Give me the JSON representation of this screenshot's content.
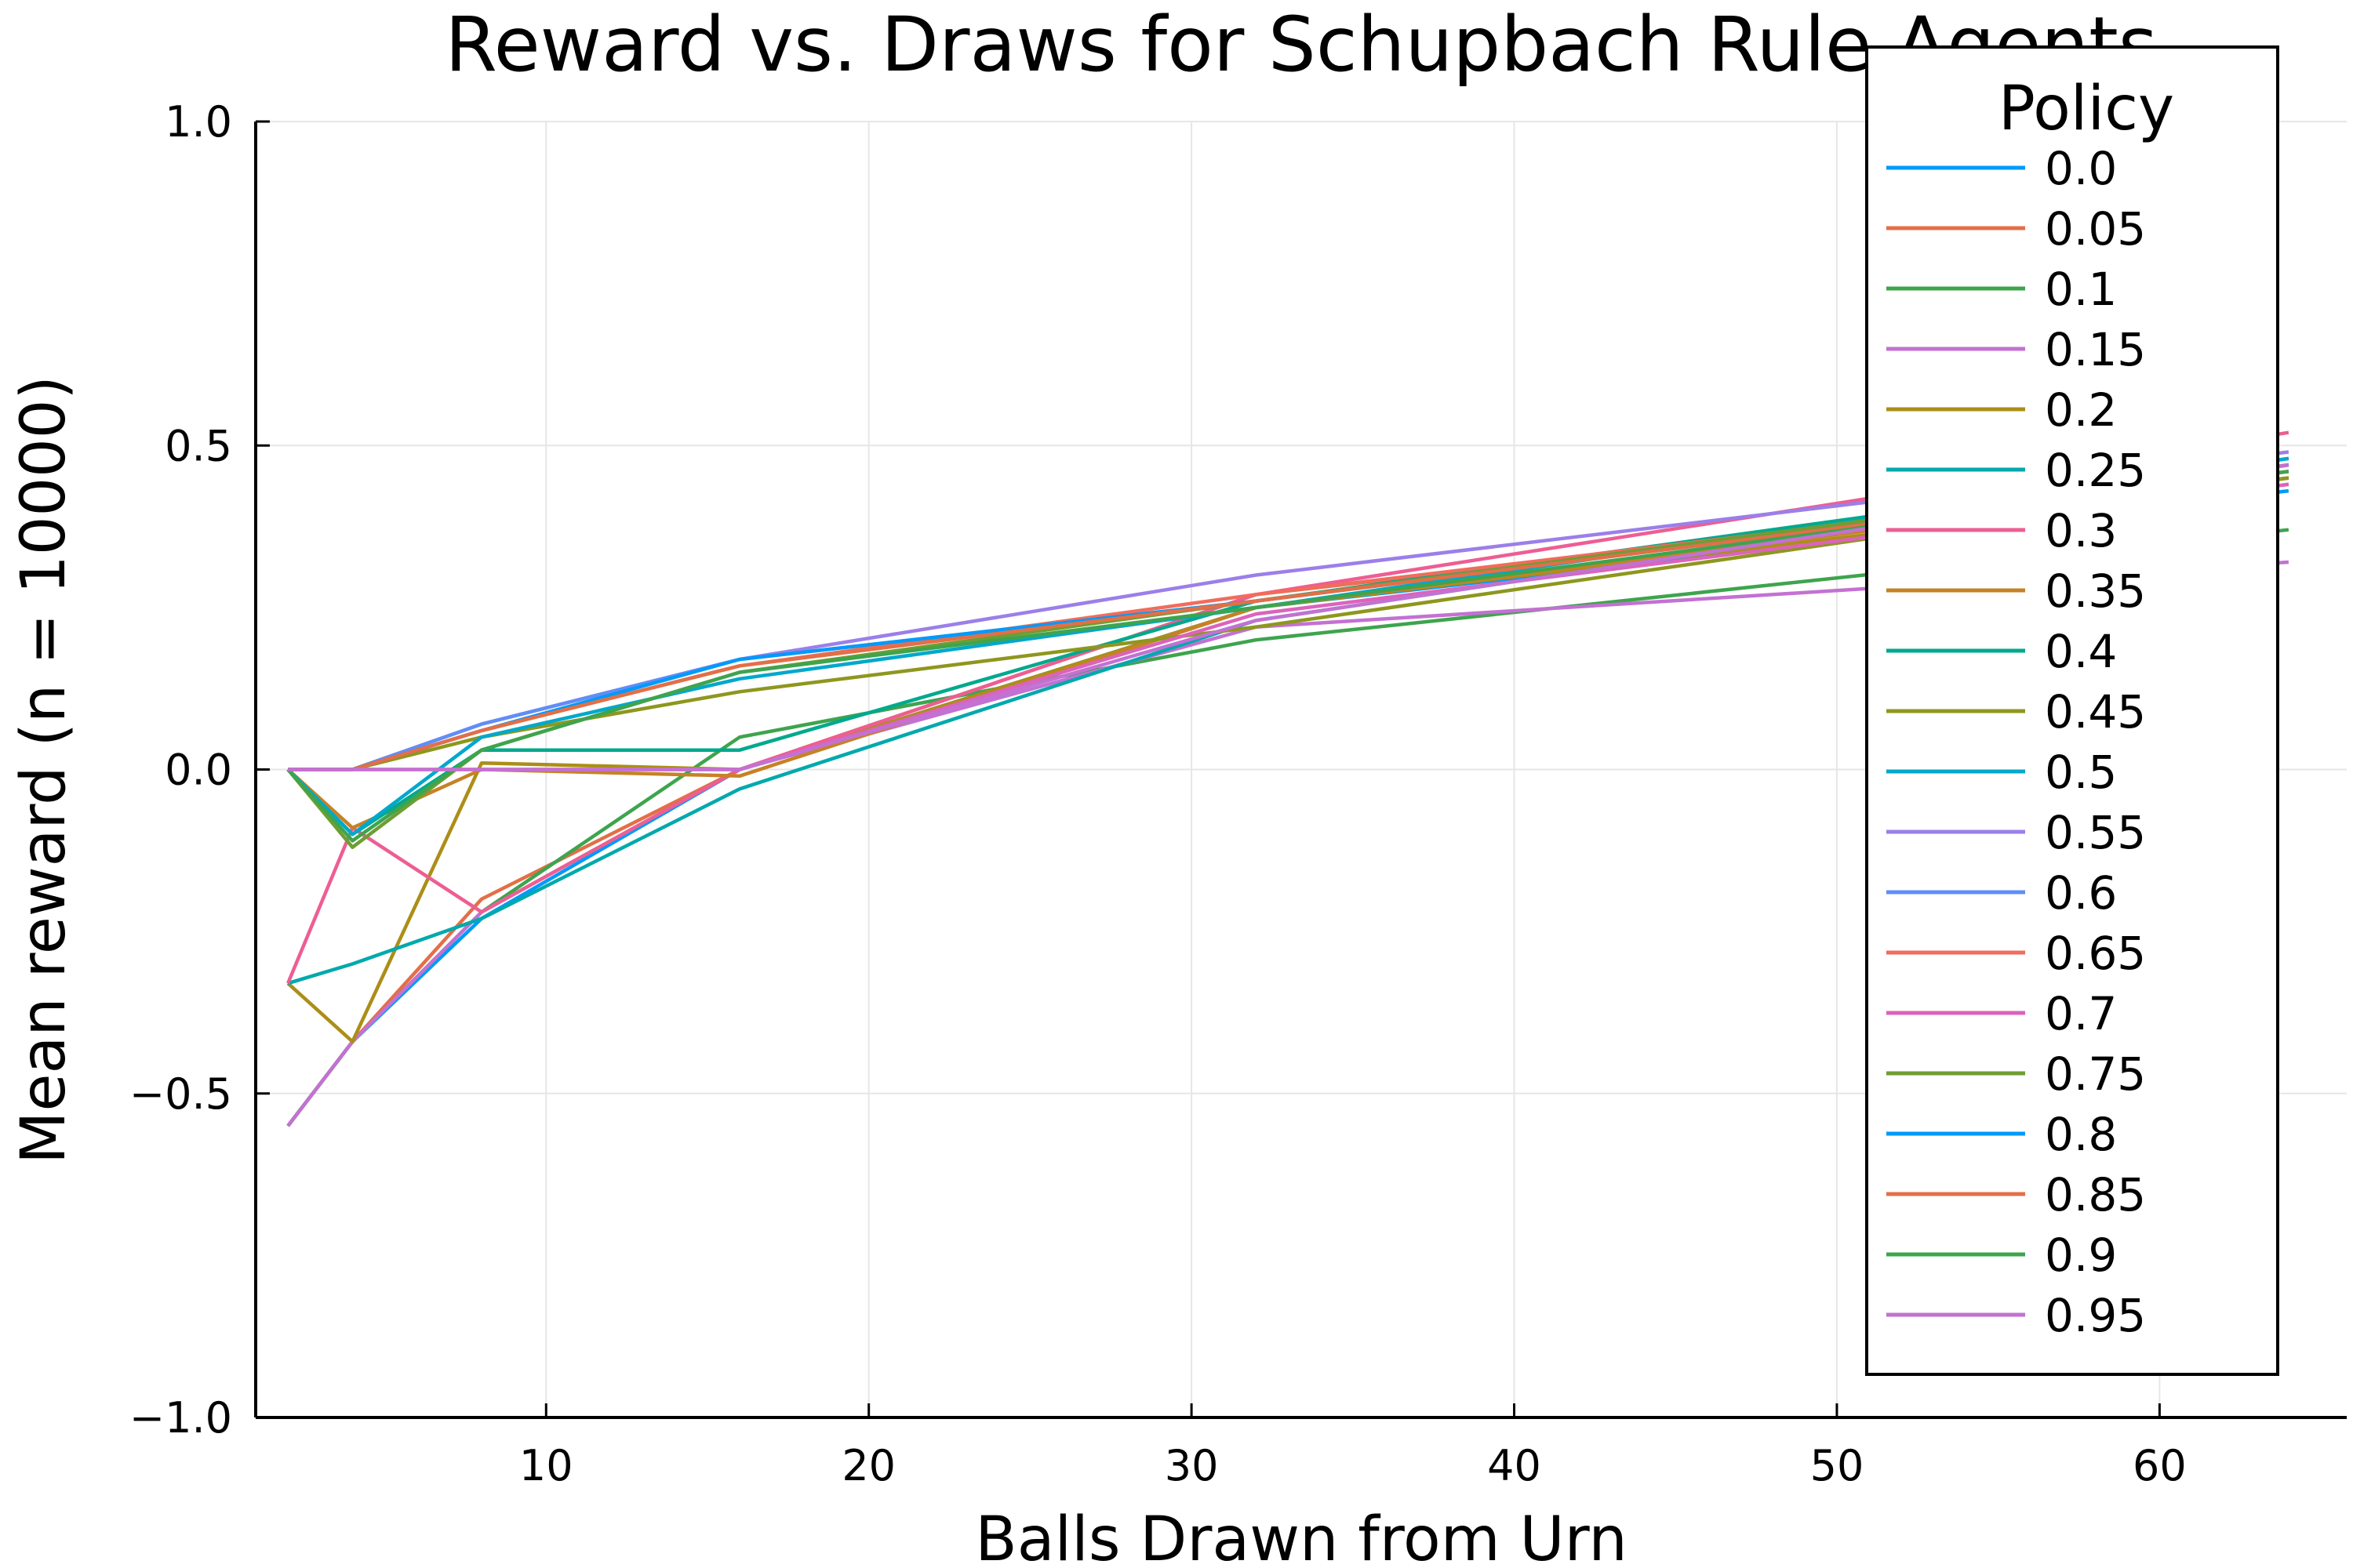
{
  "chart_data": {
    "type": "line",
    "title": "Reward vs. Draws for Schupbach Rule Agents",
    "xlabel": "Balls Drawn from Urn",
    "ylabel": "Mean reward (n = 10000)",
    "xlim": [
      1,
      65.8
    ],
    "ylim": [
      -1.0,
      1.0
    ],
    "xticks": [
      10,
      20,
      30,
      40,
      50,
      60
    ],
    "xtick_labels": [
      "10",
      "20",
      "30",
      "40",
      "50",
      "60"
    ],
    "yticks": [
      -1.0,
      -0.5,
      0.0,
      0.5,
      1.0
    ],
    "ytick_labels": [
      "−1.0",
      "−0.5",
      "0.0",
      "0.5",
      "1.0"
    ],
    "grid": true,
    "legend_title": "Policy",
    "legend_position": "top-right",
    "x": [
      2,
      4,
      8,
      16,
      32,
      64
    ],
    "series": [
      {
        "name": "0.0",
        "color": "#009AFA",
        "values": [
          -0.55,
          -0.42,
          -0.23,
          0.0,
          0.25,
          0.43
        ]
      },
      {
        "name": "0.05",
        "color": "#E36F47",
        "values": [
          -0.55,
          -0.42,
          -0.2,
          0.0,
          0.27,
          0.45
        ]
      },
      {
        "name": "0.1",
        "color": "#3EA44E",
        "values": [
          -0.55,
          -0.42,
          -0.22,
          0.05,
          0.2,
          0.37
        ]
      },
      {
        "name": "0.15",
        "color": "#C371D2",
        "values": [
          -0.55,
          -0.42,
          -0.22,
          0.0,
          0.22,
          0.32
        ]
      },
      {
        "name": "0.2",
        "color": "#AC8E18",
        "values": [
          -0.33,
          -0.42,
          0.01,
          0.0,
          0.25,
          0.44
        ]
      },
      {
        "name": "0.25",
        "color": "#00A9AD",
        "values": [
          -0.33,
          -0.3,
          -0.23,
          -0.03,
          0.23,
          0.47
        ]
      },
      {
        "name": "0.3",
        "color": "#ED5E93",
        "values": [
          -0.33,
          -0.09,
          -0.22,
          0.0,
          0.27,
          0.52
        ]
      },
      {
        "name": "0.35",
        "color": "#C68225",
        "values": [
          0.0,
          -0.09,
          0.0,
          -0.01,
          0.25,
          0.45
        ]
      },
      {
        "name": "0.4",
        "color": "#00A98D",
        "values": [
          0.0,
          -0.1,
          0.03,
          0.03,
          0.26,
          0.48
        ]
      },
      {
        "name": "0.45",
        "color": "#8E971E",
        "values": [
          0.0,
          0.0,
          0.05,
          0.12,
          0.22,
          0.45
        ]
      },
      {
        "name": "0.5",
        "color": "#00A8CB",
        "values": [
          0.0,
          -0.1,
          0.05,
          0.14,
          0.25,
          0.48
        ]
      },
      {
        "name": "0.55",
        "color": "#9B7FE9",
        "values": [
          0.0,
          0.0,
          0.07,
          0.17,
          0.3,
          0.49
        ]
      },
      {
        "name": "0.6",
        "color": "#618DF6",
        "values": [
          0.0,
          0.0,
          0.07,
          0.17,
          0.26,
          0.47
        ]
      },
      {
        "name": "0.65",
        "color": "#F16C5B",
        "values": [
          0.0,
          0.0,
          0.06,
          0.16,
          0.27,
          0.46
        ]
      },
      {
        "name": "0.7",
        "color": "#DC63BC",
        "values": [
          0.0,
          0.0,
          0.0,
          0.0,
          0.24,
          0.44
        ]
      },
      {
        "name": "0.75",
        "color": "#6E9E32",
        "values": [
          0.0,
          -0.12,
          0.03,
          0.15,
          0.26,
          0.47
        ]
      },
      {
        "name": "0.8",
        "color": "#009AFA",
        "values": [
          0.0,
          0.0,
          0.06,
          0.17,
          0.26,
          0.46
        ]
      },
      {
        "name": "0.85",
        "color": "#E36F47",
        "values": [
          0.0,
          0.0,
          0.06,
          0.16,
          0.26,
          0.46
        ]
      },
      {
        "name": "0.9",
        "color": "#3EA44E",
        "values": [
          0.0,
          -0.11,
          0.03,
          0.15,
          0.25,
          0.46
        ]
      },
      {
        "name": "0.95",
        "color": "#C371D2",
        "values": [
          0.0,
          0.0,
          0.0,
          0.0,
          0.23,
          0.47
        ]
      }
    ]
  }
}
